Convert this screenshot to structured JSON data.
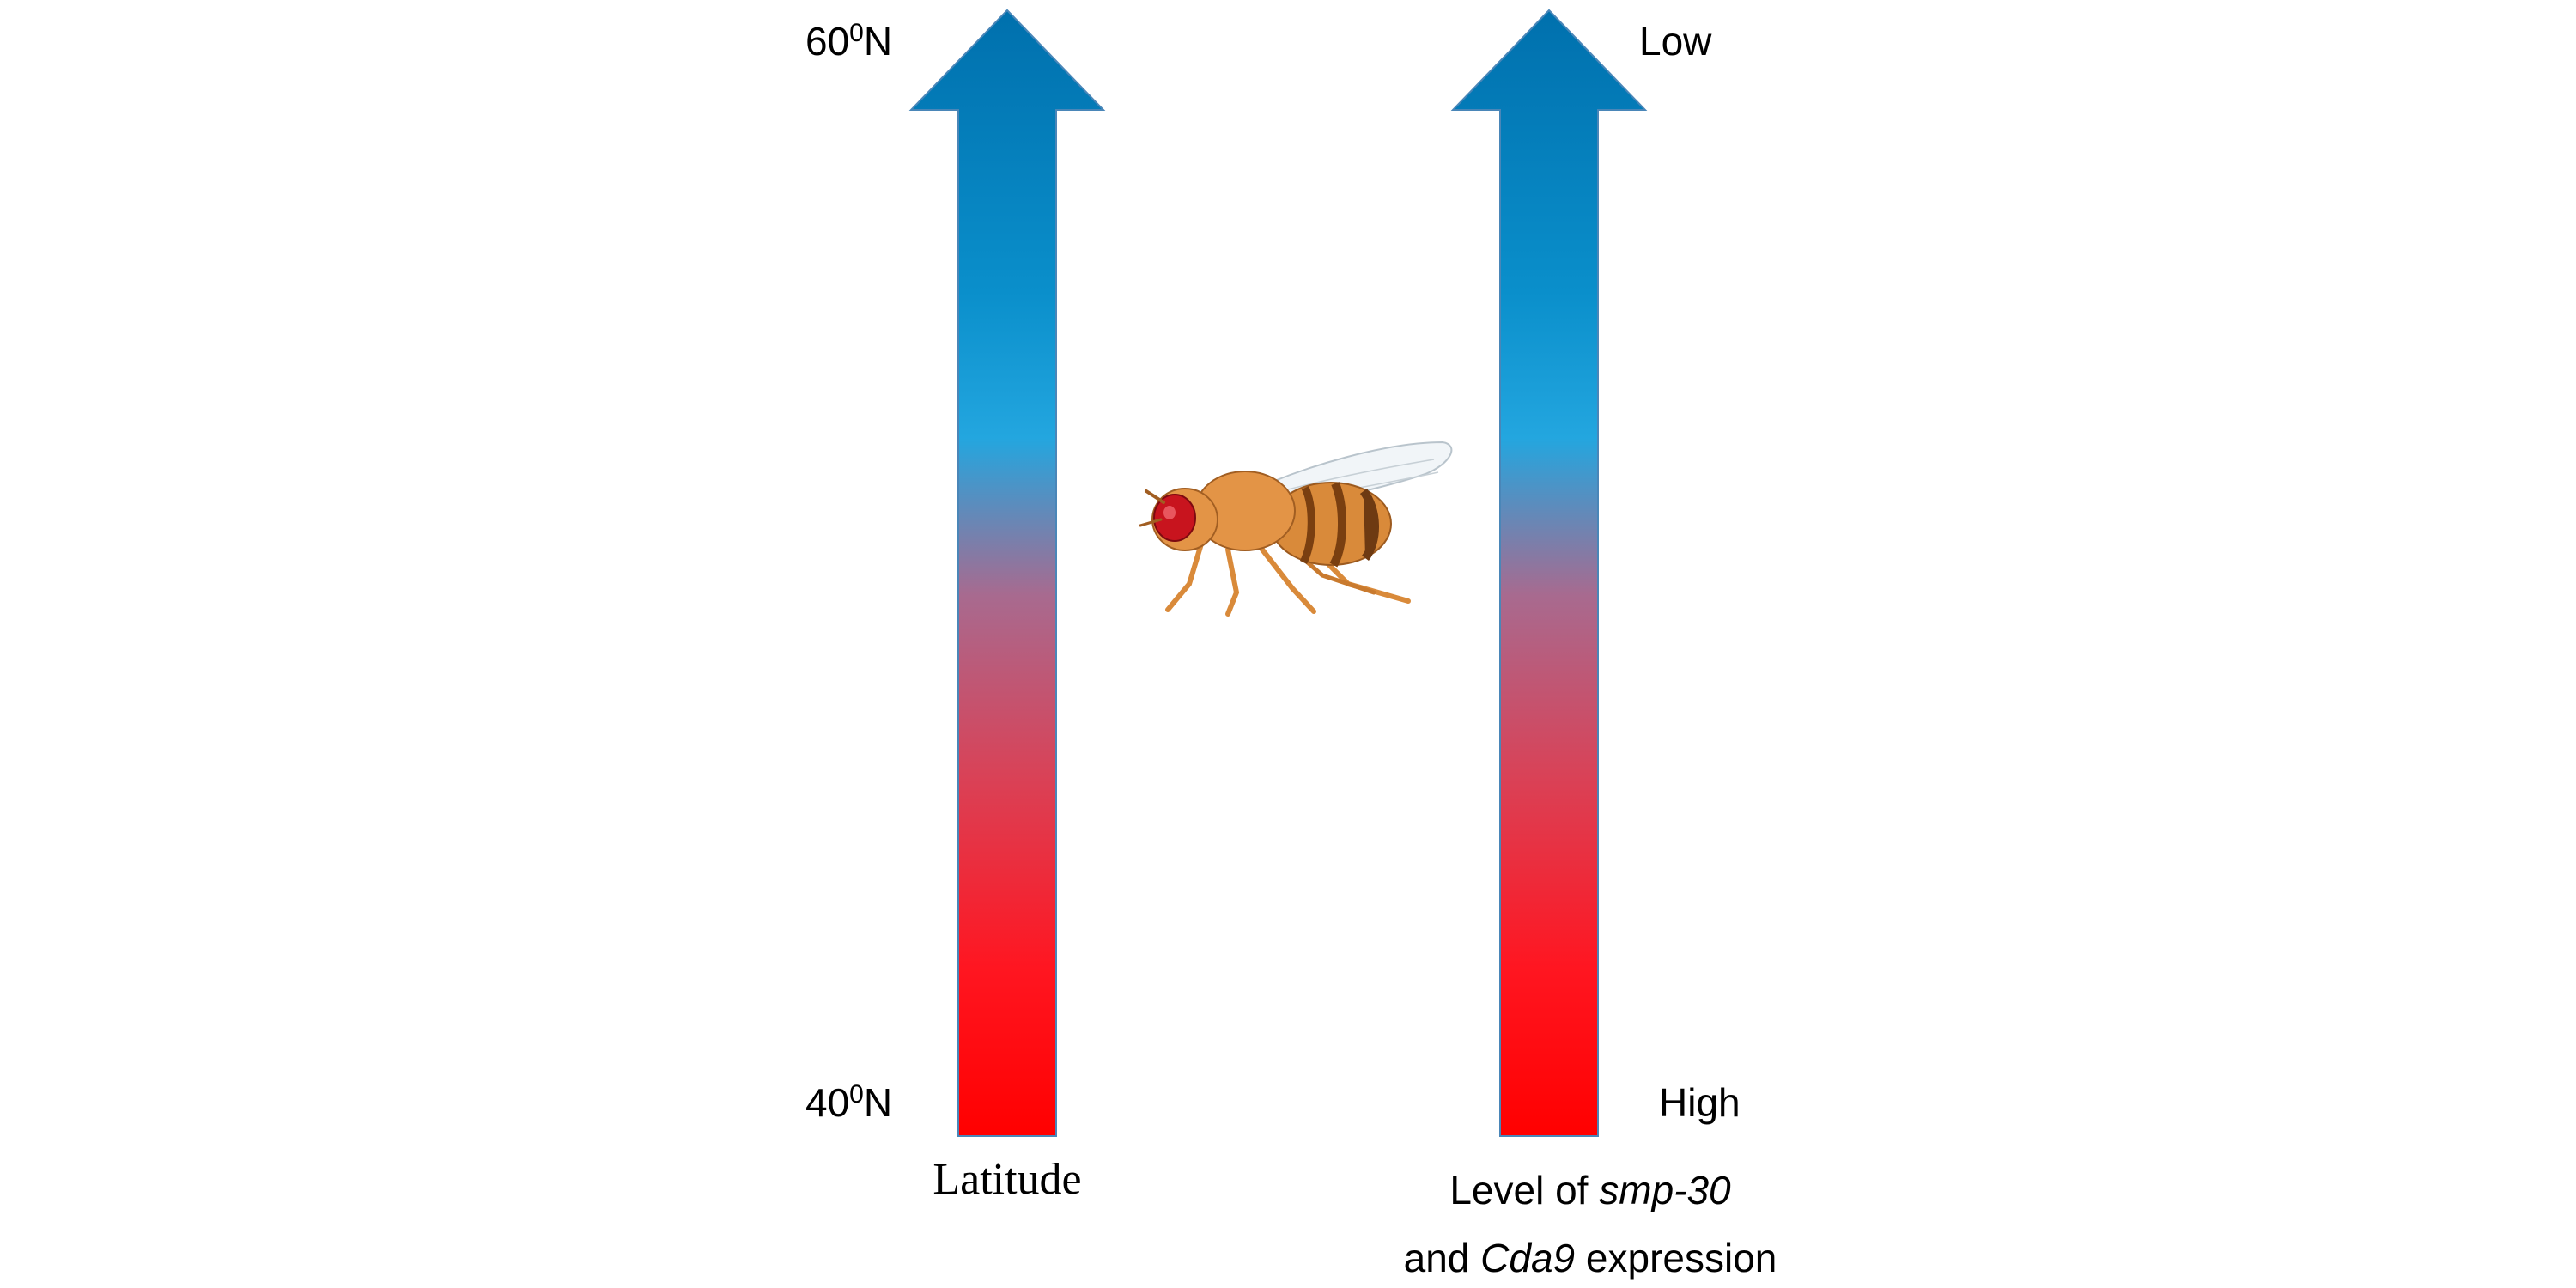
{
  "colors": {
    "arrow_top": "#0070ad",
    "arrow_mid": "#23a6df",
    "arrow_blend": "#a86a8f",
    "arrow_bottom": "#ff0000",
    "fly_body": "#d98a3a",
    "fly_eye": "#c8141e"
  },
  "left_arrow": {
    "top_label_main": "60",
    "top_label_sup": "0",
    "top_label_suffix": "N",
    "bottom_label_main": "40",
    "bottom_label_sup": "0",
    "bottom_label_suffix": "N",
    "caption": "Latitude"
  },
  "right_arrow": {
    "top_label": "Low",
    "bottom_label": "High",
    "caption_line1_prefix": "Level of ",
    "caption_line1_gene": "smp-30",
    "caption_line2_prefix": "and ",
    "caption_line2_gene": "Cda9",
    "caption_line2_suffix": " expression"
  },
  "icons": {
    "fly": "fruit-fly-icon"
  }
}
